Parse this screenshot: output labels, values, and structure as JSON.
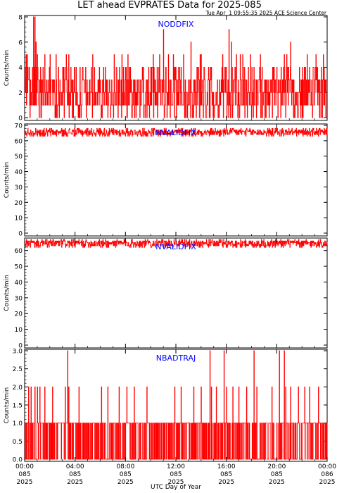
{
  "title": "LET ahead EVPRATES Data for 2025-085",
  "timestamp": "Tue Apr  1 09:55:35 2025 ACE Science Center",
  "x_axis": {
    "label": "UTC Day of Year",
    "ticks": [
      {
        "time": "00:00",
        "doy": "085",
        "year": "2025"
      },
      {
        "time": "04:00",
        "doy": "085",
        "year": "2025"
      },
      {
        "time": "08:00",
        "doy": "085",
        "year": "2025"
      },
      {
        "time": "12:00",
        "doy": "085",
        "year": "2025"
      },
      {
        "time": "16:00",
        "doy": "085",
        "year": "2025"
      },
      {
        "time": "20:00",
        "doy": "085",
        "year": "2025"
      },
      {
        "time": "00:00",
        "doy": "086",
        "year": "2025"
      }
    ]
  },
  "colors": {
    "trace": "#ff0000",
    "panel_title": "#0000ff",
    "axis": "#000000"
  },
  "chart_data": [
    {
      "type": "line",
      "title": "NODDFIX",
      "ylabel": "Counts/min",
      "xlabel": "",
      "ylim": [
        0,
        8
      ],
      "yticks": [
        "0",
        "2",
        "4",
        "6",
        "8"
      ],
      "xlim_hours": [
        0,
        24
      ],
      "series": [
        {
          "typical_range": [
            0,
            4
          ],
          "x_hours": [
            0.1,
            0.2,
            0.7,
            0.8,
            0.9,
            1.0,
            1.6,
            2.0,
            2.5,
            3.3,
            3.5,
            5.4,
            7.1,
            7.7,
            8.2,
            10.2,
            10.7,
            11.0,
            11.4,
            11.8,
            12.6,
            13.2,
            13.9,
            14.0,
            15.7,
            16.2,
            16.4,
            16.8,
            17.1,
            17.3,
            17.9,
            18.7,
            20.6,
            20.8,
            21.1,
            22.4,
            23.1,
            23.7
          ],
          "y_values": [
            5,
            5,
            8,
            8,
            6,
            5,
            5,
            5,
            5,
            5,
            5,
            5,
            5,
            5,
            5,
            5,
            5,
            7,
            5,
            5,
            5,
            6,
            5,
            5,
            5,
            7,
            6,
            5,
            5,
            5,
            5,
            5,
            5,
            5,
            6,
            5,
            5,
            5
          ]
        }
      ]
    },
    {
      "type": "line",
      "title": "NVALIDFIX",
      "ylabel": "Counts/min",
      "xlabel": "",
      "ylim": [
        0,
        70
      ],
      "yticks": [
        "0",
        "10",
        "20",
        "30",
        "40",
        "50",
        "60",
        "70"
      ],
      "xlim_hours": [
        0,
        24
      ],
      "series": [
        {
          "typical_range": [
            63,
            68
          ]
        }
      ]
    },
    {
      "type": "line",
      "title": "NVALIDFIX",
      "ylabel": "Counts/min",
      "xlabel": "",
      "ylim": [
        0,
        67
      ],
      "yticks": [
        "0",
        "10",
        "20",
        "30",
        "40",
        "50",
        "60"
      ],
      "xlim_hours": [
        0,
        24
      ],
      "series": [
        {
          "typical_range": [
            62,
            67
          ]
        }
      ]
    },
    {
      "type": "line",
      "title": "NBADTRAJ",
      "ylabel": "Counts/min",
      "xlabel": "",
      "ylim": [
        0,
        3.0
      ],
      "yticks": [
        "0.0",
        "0.5",
        "1.0",
        "1.5",
        "2.0",
        "2.5",
        "3.0"
      ],
      "xlim_hours": [
        0,
        24
      ],
      "series": [
        {
          "typical_range": [
            0,
            1
          ],
          "x_hours": [
            0.3,
            0.5,
            0.8,
            1.0,
            1.2,
            1.6,
            2.2,
            3.2,
            3.4,
            3.5,
            4.3,
            6.1,
            6.6,
            7.5,
            8.1,
            8.7,
            9.7,
            11.9,
            12.4,
            13.4,
            14.0,
            14.7,
            14.8,
            15.2,
            15.8,
            16.0,
            16.5,
            17.0,
            17.6,
            18.2,
            18.4,
            19.6,
            20.2,
            20.6,
            20.7,
            21.1,
            21.7,
            22.2,
            22.6,
            23.3
          ],
          "y_values": [
            2,
            2,
            2,
            2,
            2,
            2,
            2,
            2,
            3,
            2,
            2,
            2,
            2,
            2,
            2,
            2,
            2,
            2,
            2,
            2,
            2,
            3,
            2,
            2,
            3,
            2,
            2,
            2,
            2,
            3,
            2,
            2,
            3,
            3,
            2,
            2,
            2,
            2,
            2,
            2
          ]
        }
      ]
    }
  ]
}
